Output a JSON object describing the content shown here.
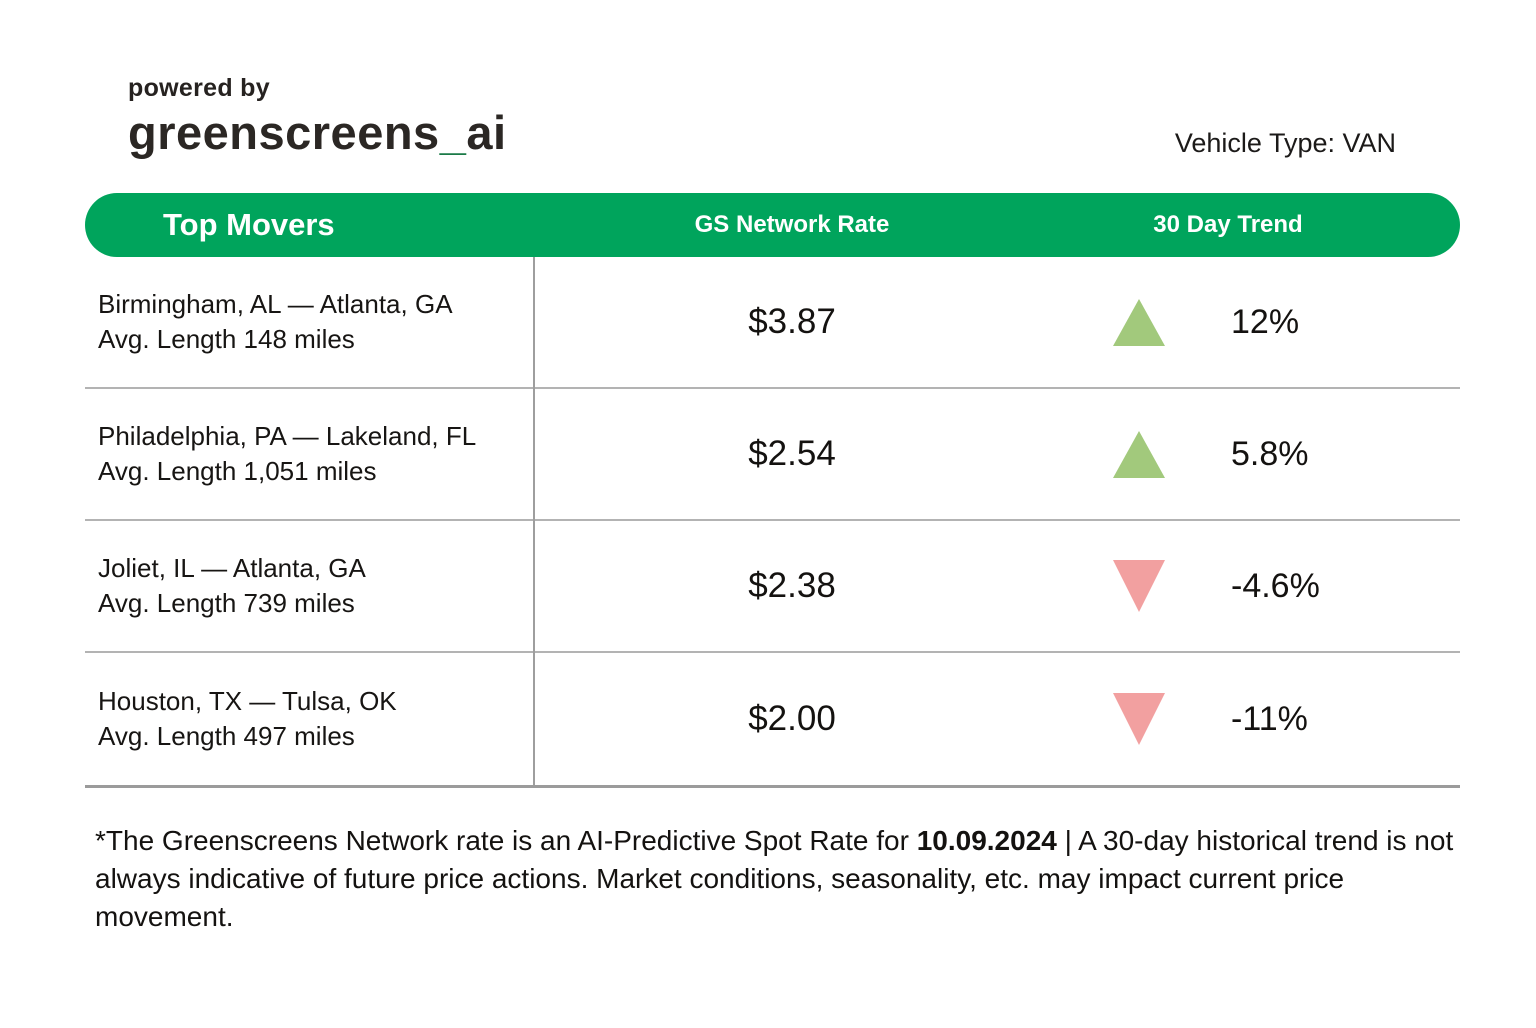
{
  "branding": {
    "powered_by": "powered by",
    "logo_main": "greenscreens",
    "logo_underscore": "_",
    "logo_suffix": "ai",
    "logo_underscore_color": "#1A7A47"
  },
  "header": {
    "vehicle_type": "Vehicle Type: VAN"
  },
  "table": {
    "header_bg_color": "#00A45C",
    "trend_up_color": "#A2C97C",
    "trend_down_color": "#F2A0A0",
    "columns": {
      "col1": "Top Movers",
      "col2": "GS Network Rate",
      "col3": "30 Day Trend"
    },
    "rows": [
      {
        "lane": "Birmingham, AL — Atlanta, GA",
        "avg_length": "Avg. Length 148 miles",
        "rate": "$3.87",
        "trend_direction": "up",
        "trend_value": "12%"
      },
      {
        "lane": "Philadelphia, PA — Lakeland, FL",
        "avg_length": "Avg. Length 1,051 miles",
        "rate": "$2.54",
        "trend_direction": "up",
        "trend_value": "5.8%"
      },
      {
        "lane": "Joliet, IL — Atlanta, GA",
        "avg_length": "Avg. Length 739 miles",
        "rate": "$2.38",
        "trend_direction": "down",
        "trend_value": "-4.6%"
      },
      {
        "lane": "Houston, TX — Tulsa, OK",
        "avg_length": "Avg. Length 497 miles",
        "rate": "$2.00",
        "trend_direction": "down",
        "trend_value": "-11%"
      }
    ]
  },
  "footnote": {
    "part1": "*The Greenscreens Network rate is an AI-Predictive Spot Rate for ",
    "date": "10.09.2024",
    "part2": " | A 30-day historical trend is not always indicative of future price actions. Market conditions, seasonality, etc. may impact current price movement."
  }
}
